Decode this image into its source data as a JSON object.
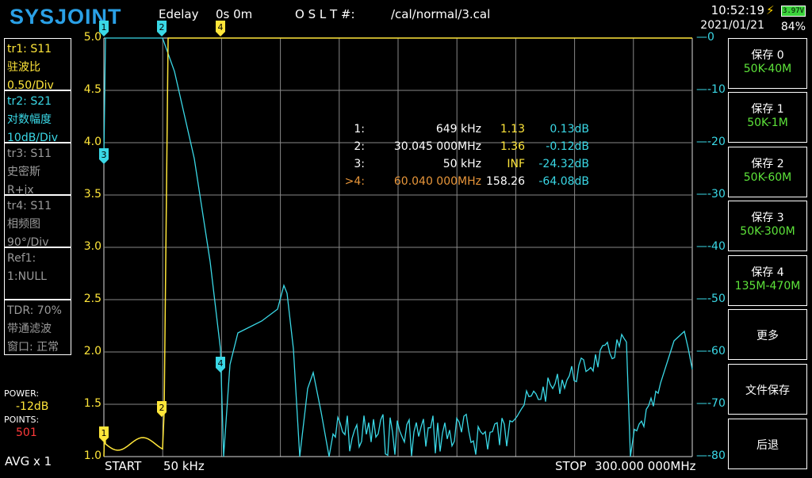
{
  "header": {
    "logo": "SYSJOINT",
    "edelay_label": "Edelay",
    "edelay_value": "0s 0m",
    "oslt_label": "O S L T #:",
    "cal_file": "/cal/normal/3.cal",
    "time": "10:52:19",
    "date": "2021/01/21",
    "battery_voltage": "3.97V",
    "battery_percent": "84%"
  },
  "traces": [
    {
      "id": "tr1:   S11",
      "format": "驻波比",
      "scale": "0.50/Div",
      "color": "#ffe63a"
    },
    {
      "id": "tr2:   S21",
      "format": "对数幅度",
      "scale": "10dB/Div",
      "color": "#3ad8e6"
    },
    {
      "id": "tr3:   S11",
      "format": "史密斯",
      "scale": "R+jx",
      "color": "#9a9a9a"
    },
    {
      "id": "tr4:   S11",
      "format": "相频图",
      "scale": "90°/Div",
      "color": "#9a9a9a"
    }
  ],
  "ref": {
    "line1": "Ref1:",
    "line2": "1:NULL"
  },
  "tdr": {
    "line1": "TDR: 70%",
    "line2": "带通滤波",
    "line3": "窗口: 正常"
  },
  "power": {
    "label": "POWER:",
    "value": "-12dB"
  },
  "points": {
    "label": "POINTS:",
    "value": "501"
  },
  "avg": "AVG x 1",
  "sweep": {
    "start_label": "START",
    "start_value": "50 kHz",
    "stop_label": "STOP",
    "stop_value": "300.000 000MHz"
  },
  "left_axis": [
    "5.0",
    "4.5",
    "4.0",
    "3.5",
    "3.0",
    "2.5",
    "2.0",
    "1.5",
    "1.0"
  ],
  "right_axis": [
    "0",
    "-10",
    "-20",
    "-30",
    "-40",
    "-50",
    "-60",
    "-70",
    "-80"
  ],
  "marker_table": [
    {
      "idx": "1:",
      "freq": "649 kHz",
      "swr": "1.13",
      "db": "0.13dB",
      "active": false
    },
    {
      "idx": "2:",
      "freq": "30.045 000MHz",
      "swr": "1.36",
      "db": "-0.12dB",
      "active": false
    },
    {
      "idx": "3:",
      "freq": "50 kHz",
      "swr": "INF",
      "db": "-24.32dB",
      "active": false
    },
    {
      "idx": ">4:",
      "freq": "60.040 000MHz",
      "swr": "158.26",
      "db": "-64.08dB",
      "active": true
    }
  ],
  "marker_flags": [
    "1",
    "2",
    "3",
    "4"
  ],
  "buttons": [
    {
      "title": "保存 0",
      "sub": "50K-40M"
    },
    {
      "title": "保存 1",
      "sub": "50K-1M"
    },
    {
      "title": "保存 2",
      "sub": "50K-60M"
    },
    {
      "title": "保存 3",
      "sub": "50K-300M"
    },
    {
      "title": "保存 4",
      "sub": "135M-470M"
    },
    {
      "title": "更多",
      "sub": ""
    },
    {
      "title": "文件保存",
      "sub": ""
    },
    {
      "title": "后退",
      "sub": ""
    }
  ],
  "colors": {
    "swr_trace": "#ffe63a",
    "s21_trace": "#3ad8e6",
    "active_marker": "#e8963a",
    "button_sub": "#5de33a",
    "logo": "#2aa0e6"
  }
}
